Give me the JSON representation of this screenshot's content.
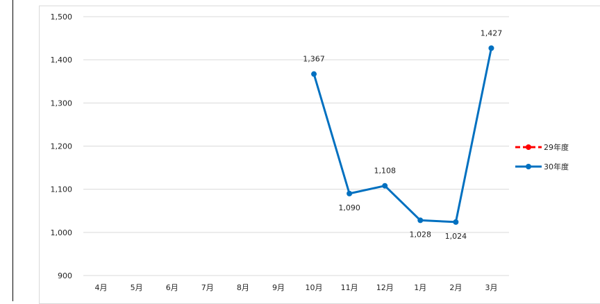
{
  "chart_data": {
    "type": "line",
    "categories": [
      "4月",
      "5月",
      "6月",
      "7月",
      "8月",
      "9月",
      "10月",
      "11月",
      "12月",
      "1月",
      "2月",
      "3月"
    ],
    "series": [
      {
        "name": "29年度",
        "color": "#ff0000",
        "dashed": true,
        "values": [
          null,
          null,
          null,
          null,
          null,
          null,
          null,
          null,
          null,
          null,
          null,
          null
        ]
      },
      {
        "name": "30年度",
        "color": "#0070c0",
        "dashed": false,
        "values": [
          null,
          null,
          null,
          null,
          null,
          null,
          1367,
          1090,
          1108,
          1028,
          1024,
          1427
        ],
        "labels": [
          "",
          "",
          "",
          "",
          "",
          "",
          "1,367",
          "1,090",
          "1,108",
          "1,028",
          "1,024",
          "1,427"
        ]
      }
    ],
    "ylim": [
      900,
      1500
    ],
    "yticks": [
      900,
      1000,
      1100,
      1200,
      1300,
      1400,
      1500
    ],
    "ytick_labels": [
      "900",
      "1,000",
      "1,100",
      "1,200",
      "1,300",
      "1,400",
      "1,500"
    ],
    "grid": true,
    "legend": "right",
    "title": "",
    "xlabel": "",
    "ylabel": ""
  }
}
